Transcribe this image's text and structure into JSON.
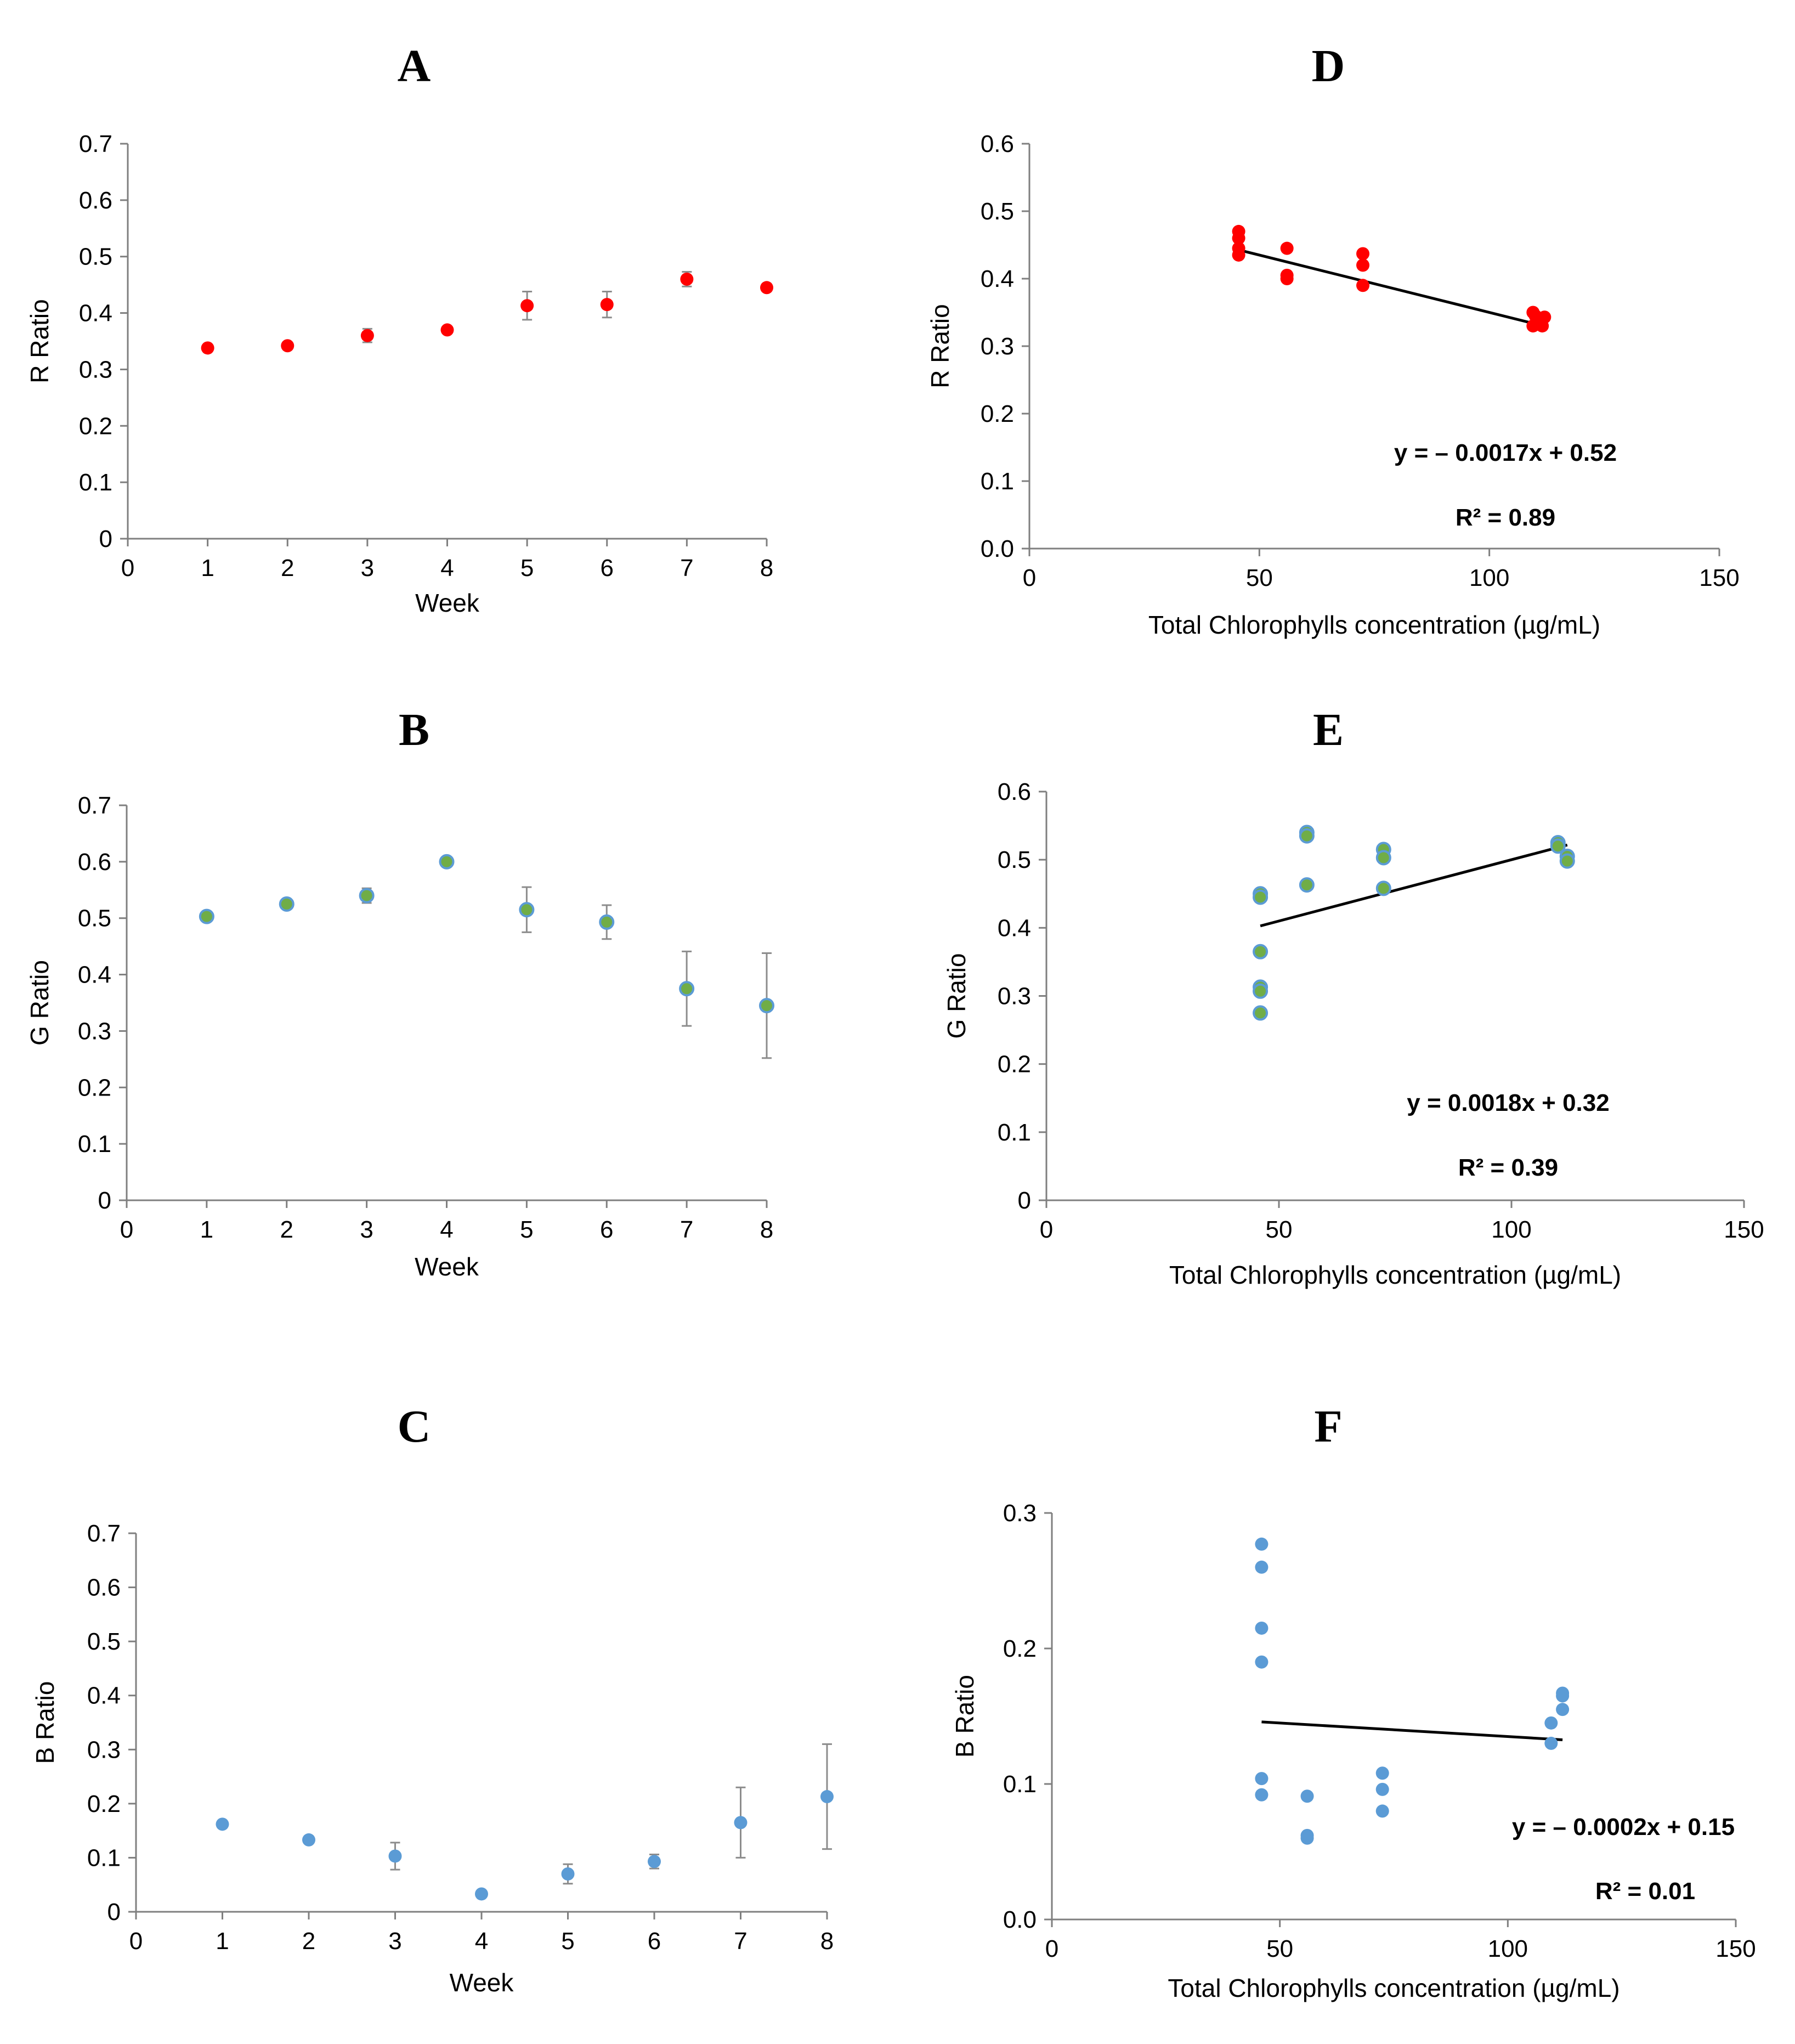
{
  "colors": {
    "red": "#ff0000",
    "green_fill": "#70ad47",
    "green_edge": "#5b9bd5",
    "blue": "#5b9bd5"
  },
  "chart_data": [
    {
      "id": "A",
      "panel": "A",
      "type": "scatter",
      "xlabel": "Week",
      "ylabel": "R Ratio",
      "xlim": [
        0,
        8
      ],
      "ylim": [
        0,
        0.7
      ],
      "xticks": [
        "0",
        "1",
        "2",
        "3",
        "4",
        "5",
        "6",
        "7",
        "8"
      ],
      "yticks": [
        "0",
        "0.1",
        "0.2",
        "0.3",
        "0.4",
        "0.5",
        "0.6",
        "0.7"
      ],
      "color": "red",
      "series": [
        {
          "name": "R Ratio",
          "x": [
            1,
            2,
            3,
            4,
            5,
            6,
            7,
            8
          ],
          "values": [
            0.338,
            0.342,
            0.36,
            0.37,
            0.413,
            0.415,
            0.46,
            0.445
          ],
          "errors": [
            0.004,
            0.005,
            0.012,
            0.006,
            0.025,
            0.023,
            0.013,
            0.003
          ]
        }
      ]
    },
    {
      "id": "B",
      "panel": "B",
      "type": "scatter",
      "xlabel": "Week",
      "ylabel": "G Ratio",
      "xlim": [
        0,
        8
      ],
      "ylim": [
        0,
        0.7
      ],
      "xticks": [
        "0",
        "1",
        "2",
        "3",
        "4",
        "5",
        "6",
        "7",
        "8"
      ],
      "yticks": [
        "0",
        "0.1",
        "0.2",
        "0.3",
        "0.4",
        "0.5",
        "0.6",
        "0.7"
      ],
      "color": "green",
      "series": [
        {
          "name": "G Ratio",
          "x": [
            1,
            2,
            3,
            4,
            5,
            6,
            7,
            8
          ],
          "values": [
            0.503,
            0.525,
            0.54,
            0.6,
            0.515,
            0.493,
            0.375,
            0.345
          ],
          "errors": [
            0.004,
            0.004,
            0.013,
            0.004,
            0.04,
            0.03,
            0.066,
            0.093
          ]
        }
      ]
    },
    {
      "id": "C",
      "panel": "C",
      "type": "scatter",
      "xlabel": "Week",
      "ylabel": "B Ratio",
      "xlim": [
        0,
        8
      ],
      "ylim": [
        0,
        0.7
      ],
      "xticks": [
        "0",
        "1",
        "2",
        "3",
        "4",
        "5",
        "6",
        "7",
        "8"
      ],
      "yticks": [
        "0",
        "0.1",
        "0.2",
        "0.3",
        "0.4",
        "0.5",
        "0.6",
        "0.7"
      ],
      "color": "blue",
      "series": [
        {
          "name": "B Ratio",
          "x": [
            1,
            2,
            3,
            4,
            5,
            6,
            7,
            8
          ],
          "values": [
            0.162,
            0.133,
            0.103,
            0.033,
            0.07,
            0.093,
            0.165,
            0.213
          ],
          "errors": [
            0.004,
            0.004,
            0.025,
            0.004,
            0.018,
            0.013,
            0.065,
            0.097
          ]
        }
      ]
    },
    {
      "id": "D",
      "panel": "D",
      "type": "scatter",
      "xlabel": "Total Chlorophylls concentration (µg/mL)",
      "ylabel": "R Ratio",
      "xlim": [
        0,
        150
      ],
      "ylim": [
        0,
        0.6
      ],
      "xticks": [
        "0",
        "50",
        "100",
        "150"
      ],
      "yticks": [
        "0.0",
        "0.1",
        "0.2",
        "0.3",
        "0.4",
        "0.5",
        "0.6"
      ],
      "color": "red",
      "series": [
        {
          "name": "R Ratio",
          "x": [
            45.5,
            45.5,
            45.5,
            45.5,
            56,
            56,
            56,
            72.5,
            72.5,
            72.5,
            109.5,
            109.5,
            110,
            111.5,
            111.5,
            112
          ],
          "values": [
            0.47,
            0.46,
            0.445,
            0.435,
            0.445,
            0.405,
            0.4,
            0.437,
            0.42,
            0.39,
            0.35,
            0.33,
            0.345,
            0.34,
            0.33,
            0.343
          ]
        }
      ],
      "trendline": {
        "slope": -0.0017,
        "intercept": 0.52,
        "x_range": [
          45.5,
          112
        ]
      },
      "equation": "y = – 0.0017x + 0.52",
      "r2": "R² = 0.89"
    },
    {
      "id": "E",
      "panel": "E",
      "type": "scatter",
      "xlabel": "Total Chlorophylls concentration (µg/mL)",
      "ylabel": "G Ratio",
      "xlim": [
        0,
        150
      ],
      "ylim": [
        0,
        0.6
      ],
      "xticks": [
        "0",
        "50",
        "100",
        "150"
      ],
      "yticks": [
        "0",
        "0.1",
        "0.2",
        "0.3",
        "0.4",
        "0.5",
        "0.6"
      ],
      "color": "green",
      "series": [
        {
          "name": "G Ratio",
          "x": [
            46,
            46,
            46,
            46,
            46,
            46,
            56,
            56,
            56,
            72.5,
            72.5,
            72.5,
            110,
            110,
            112,
            112
          ],
          "values": [
            0.45,
            0.445,
            0.365,
            0.313,
            0.307,
            0.275,
            0.54,
            0.535,
            0.463,
            0.515,
            0.503,
            0.458,
            0.525,
            0.52,
            0.505,
            0.498
          ]
        }
      ],
      "trendline": {
        "slope": 0.0018,
        "intercept": 0.32,
        "x_range": [
          46,
          112
        ]
      },
      "equation": "y = 0.0018x + 0.32",
      "r2": "R² = 0.39"
    },
    {
      "id": "F",
      "panel": "F",
      "type": "scatter",
      "xlabel": "Total Chlorophylls concentration (µg/mL)",
      "ylabel": "B Ratio",
      "xlim": [
        0,
        150
      ],
      "ylim": [
        0,
        0.3
      ],
      "xticks": [
        "0",
        "50",
        "100",
        "150"
      ],
      "yticks": [
        "0.0",
        "0.1",
        "0.2",
        "0.3"
      ],
      "color": "blue",
      "series": [
        {
          "name": "B Ratio",
          "x": [
            46,
            46,
            46,
            46,
            46,
            46,
            56,
            56,
            56,
            72.5,
            72.5,
            72.5,
            109.5,
            109.5,
            112,
            112,
            112
          ],
          "values": [
            0.277,
            0.26,
            0.215,
            0.19,
            0.104,
            0.092,
            0.091,
            0.062,
            0.06,
            0.108,
            0.096,
            0.08,
            0.145,
            0.13,
            0.167,
            0.165,
            0.155
          ]
        }
      ],
      "trendline": {
        "slope": -0.0002,
        "intercept": 0.155,
        "x_range": [
          46,
          112
        ]
      },
      "equation": "y = – 0.0002x + 0.15",
      "r2": "R² = 0.01"
    }
  ]
}
